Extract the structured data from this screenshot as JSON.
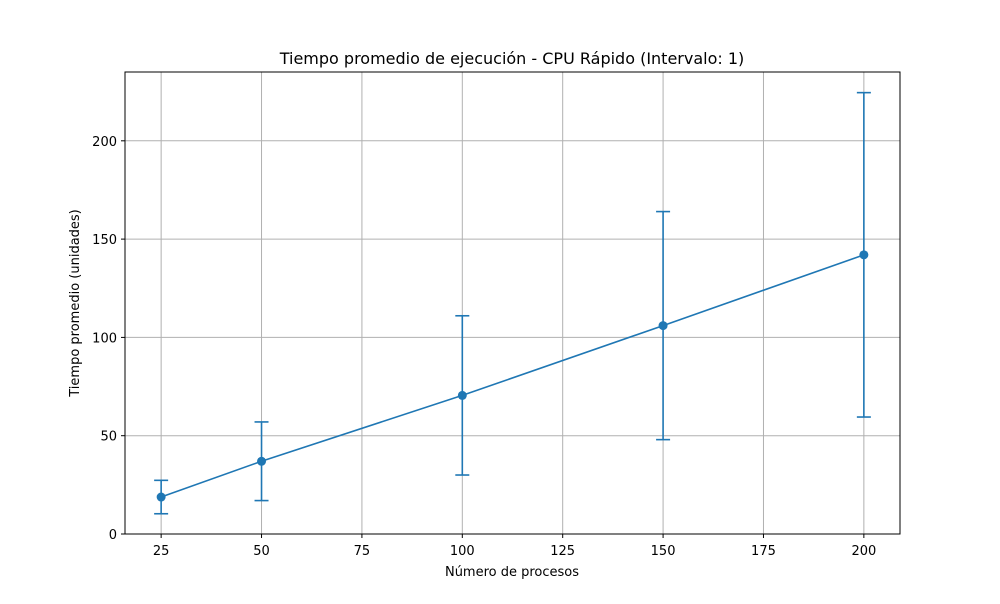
{
  "chart_data": {
    "type": "line",
    "title": "Tiempo promedio de ejecución - CPU Rápido (Intervalo: 1)",
    "xlabel": "Número de procesos",
    "ylabel": "Tiempo promedio (unidades)",
    "xlim": [
      16,
      209
    ],
    "ylim": [
      0,
      235
    ],
    "xticks": [
      25,
      50,
      75,
      100,
      125,
      150,
      175,
      200
    ],
    "yticks": [
      0,
      50,
      100,
      150,
      200
    ],
    "grid": true,
    "legend": "none",
    "series": [
      {
        "x": [
          25,
          50,
          100,
          150,
          200
        ],
        "y": [
          18.8,
          37.0,
          70.5,
          106.0,
          142.0
        ],
        "error": [
          8.5,
          20.0,
          40.5,
          58.0,
          82.5
        ],
        "color": "#1f77b4",
        "marker": "circle"
      }
    ]
  }
}
